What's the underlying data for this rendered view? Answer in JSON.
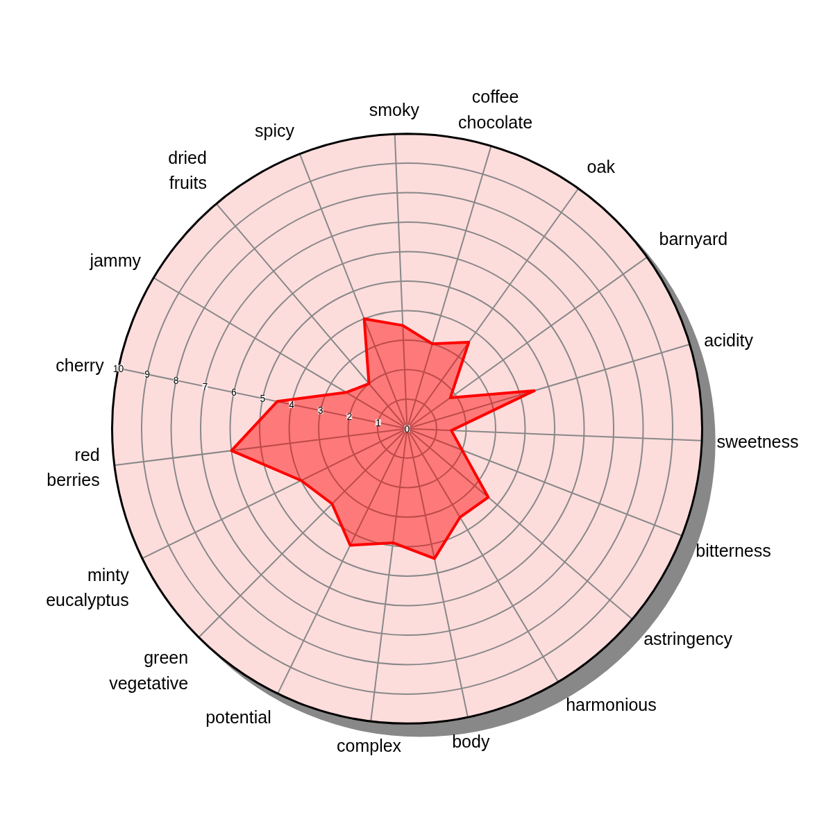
{
  "chart_data": {
    "type": "radar",
    "categories": [
      "smoky",
      "coffee\nchocolate",
      "oak",
      "barnyard",
      "acidity",
      "sweetness",
      "bitterness",
      "astringency",
      "harmonious",
      "body",
      "complex",
      "potential",
      "green\nvegetative",
      "minty\neucalyptus",
      "red\nberries",
      "cherry",
      "jammy",
      "dried\nfruits",
      "spicy"
    ],
    "series": [
      {
        "color": "#ff0000",
        "values": [
          3.5,
          3.0,
          3.6,
          1.8,
          4.5,
          1.5,
          2.0,
          3.6,
          3.5,
          4.5,
          3.9,
          4.4,
          3.6,
          4.0,
          6.0,
          4.5,
          2.4,
          2.0,
          4.0
        ]
      }
    ],
    "ylim": [
      0,
      10
    ],
    "yticks": [
      0,
      1,
      2,
      3,
      4,
      5,
      6,
      7,
      8,
      9,
      10
    ],
    "grid": true
  }
}
